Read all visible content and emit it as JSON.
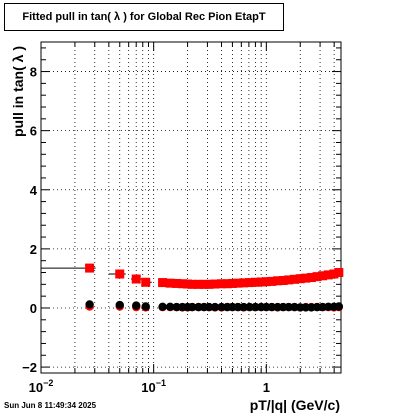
{
  "chart_data": {
    "type": "scatter",
    "title": "Fitted pull in tan( λ ) for Global Rec Pion EtapT",
    "xlabel": "pT/|q| (GeV/c)",
    "ylabel": "pull in tan( λ )",
    "x_scale": "log",
    "xlim": [
      0.01,
      4.6
    ],
    "ylim": [
      -2.2,
      9.0
    ],
    "grid": true,
    "x_tick_labels": [
      {
        "value": 0.01,
        "base": "10",
        "exp": "−2"
      },
      {
        "value": 0.1,
        "base": "10",
        "exp": "−1"
      },
      {
        "value": 1,
        "base": "1",
        "exp": ""
      }
    ],
    "y_ticks": [
      -2,
      0,
      2,
      4,
      6,
      8
    ],
    "y_tick_labels": [
      "−2",
      "0",
      "2",
      "4",
      "6",
      "8"
    ],
    "series": [
      {
        "marker": "square",
        "color": "#ff0000",
        "x": [
          0.027,
          0.05,
          0.07,
          0.085,
          0.12,
          0.14,
          0.16,
          0.18,
          0.2,
          0.22,
          0.25,
          0.28,
          0.31,
          0.35,
          0.4,
          0.45,
          0.5,
          0.56,
          0.63,
          0.71,
          0.8,
          0.9,
          1.0,
          1.12,
          1.26,
          1.41,
          1.58,
          1.78,
          2.0,
          2.24,
          2.51,
          2.82,
          3.16,
          3.55,
          3.98,
          4.4
        ],
        "y": [
          1.35,
          1.15,
          0.98,
          0.87,
          0.86,
          0.84,
          0.83,
          0.82,
          0.81,
          0.8,
          0.8,
          0.8,
          0.8,
          0.81,
          0.82,
          0.82,
          0.83,
          0.84,
          0.85,
          0.86,
          0.87,
          0.88,
          0.89,
          0.9,
          0.92,
          0.93,
          0.95,
          0.97,
          0.99,
          1.01,
          1.03,
          1.06,
          1.09,
          1.12,
          1.15,
          1.2
        ],
        "xerr_low": [
          0.017,
          0.01,
          0.007,
          0.005
        ]
      },
      {
        "marker": "circle",
        "color": "#ff0000",
        "x": [
          0.027,
          0.05,
          0.07,
          0.085,
          0.12,
          0.14,
          0.16,
          0.18,
          0.2,
          0.22,
          0.25,
          0.28,
          0.31,
          0.35,
          0.4,
          0.45,
          0.5,
          0.56,
          0.63,
          0.71,
          0.8,
          0.9,
          1.0,
          1.12,
          1.26,
          1.41,
          1.58,
          1.78,
          2.0,
          2.24,
          2.51,
          2.82,
          3.16,
          3.55,
          3.98,
          4.4
        ],
        "y": [
          0.05,
          0.05,
          0.03,
          0.02,
          0.03,
          0.03,
          0.03,
          0.02,
          0.02,
          0.03,
          0.03,
          0.03,
          0.03,
          0.02,
          0.02,
          0.03,
          0.03,
          0.03,
          0.02,
          0.03,
          0.03,
          0.03,
          0.03,
          0.03,
          0.02,
          0.03,
          0.03,
          0.03,
          0.02,
          0.03,
          0.03,
          0.03,
          0.03,
          0.03,
          0.02,
          0.03
        ]
      },
      {
        "marker": "circle",
        "color": "#000000",
        "x": [
          0.027,
          0.05,
          0.07,
          0.085,
          0.12,
          0.14,
          0.16,
          0.18,
          0.2,
          0.22,
          0.25,
          0.28,
          0.31,
          0.35,
          0.4,
          0.45,
          0.5,
          0.56,
          0.63,
          0.71,
          0.8,
          0.9,
          1.0,
          1.12,
          1.26,
          1.41,
          1.58,
          1.78,
          2.0,
          2.24,
          2.51,
          2.82,
          3.16,
          3.55,
          3.98,
          4.4
        ],
        "y": [
          0.12,
          0.1,
          0.08,
          0.05,
          0.04,
          0.04,
          0.03,
          0.03,
          0.03,
          0.03,
          0.03,
          0.03,
          0.03,
          0.03,
          0.03,
          0.03,
          0.03,
          0.03,
          0.03,
          0.03,
          0.03,
          0.03,
          0.03,
          0.03,
          0.03,
          0.03,
          0.03,
          0.03,
          0.02,
          0.02,
          0.02,
          0.03,
          0.03,
          0.04,
          0.04,
          0.05
        ]
      }
    ]
  },
  "timestamp": "Sun Jun  8 11:49:34 2025"
}
